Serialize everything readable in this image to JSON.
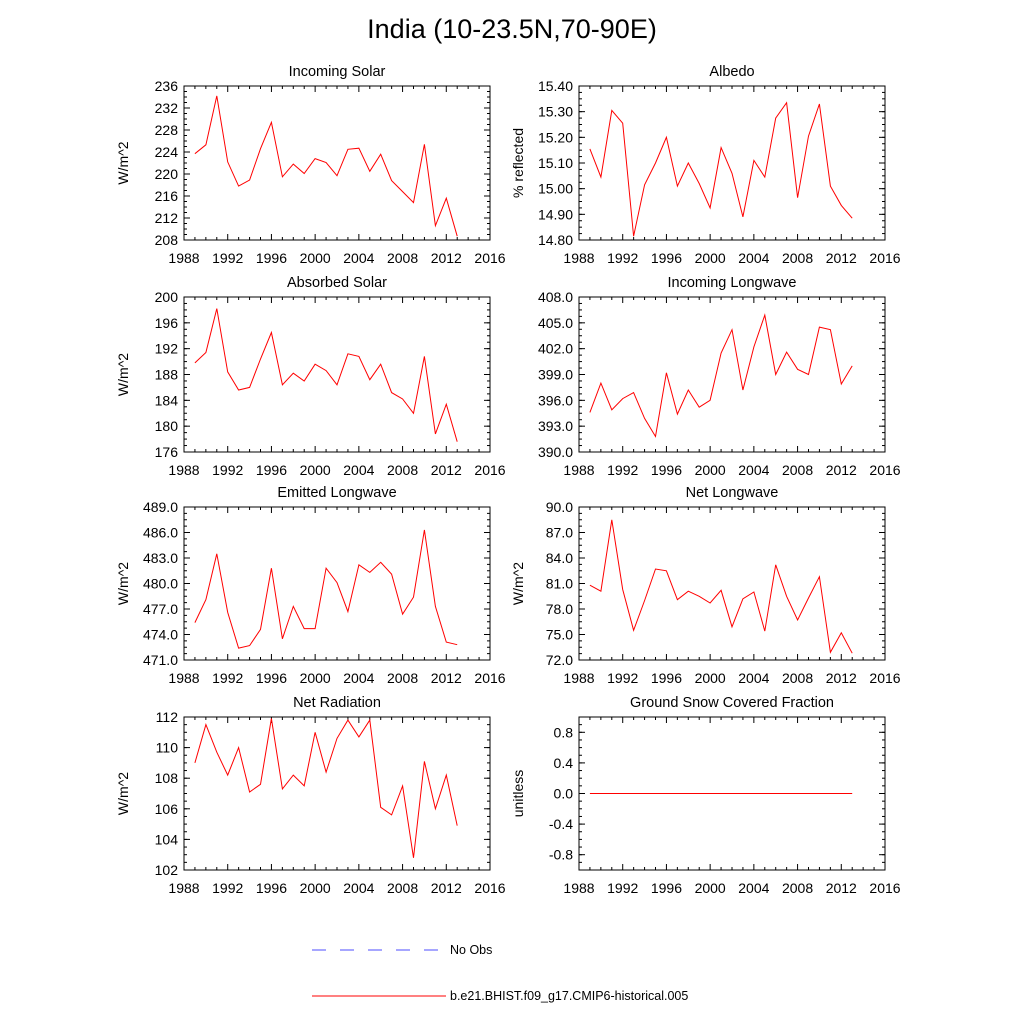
{
  "page_title": "India (10-23.5N,70-90E)",
  "colors": {
    "model_line": "#ff0000",
    "obs_line": "#4d4dff",
    "axis": "#000000"
  },
  "legend": {
    "obs_label": "No Obs",
    "model_label": "b.e21.BHIST.f09_g17.CMIP6-historical.005"
  },
  "chart_data": [
    {
      "id": "incoming-solar",
      "type": "line",
      "title": "Incoming Solar",
      "ylabel": "W/m^2",
      "xlim": [
        1988,
        2016
      ],
      "xticks": [
        1988,
        1992,
        1996,
        2000,
        2004,
        2008,
        2012,
        2016
      ],
      "ylim": [
        208,
        236
      ],
      "yticks": [
        208,
        212,
        216,
        220,
        224,
        228,
        232,
        236
      ],
      "ytick_decimals": 0,
      "x": [
        1989,
        1990,
        1991,
        1992,
        1993,
        1994,
        1995,
        1996,
        1997,
        1998,
        1999,
        2000,
        2001,
        2002,
        2003,
        2004,
        2005,
        2006,
        2007,
        2008,
        2009,
        2010,
        2011,
        2012,
        2013
      ],
      "series": [
        {
          "name": "b.e21.BHIST.f09_g17.CMIP6-historical.005",
          "values": [
            223.7,
            225.3,
            234.2,
            222.2,
            217.8,
            218.9,
            224.6,
            229.4,
            219.5,
            221.8,
            220.1,
            222.8,
            222.1,
            219.7,
            224.5,
            224.7,
            220.5,
            223.6,
            218.8,
            216.8,
            214.8,
            225.4,
            210.6,
            215.6,
            208.7
          ]
        }
      ]
    },
    {
      "id": "albedo",
      "type": "line",
      "title": "Albedo",
      "ylabel": "% reflected",
      "xlim": [
        1988,
        2016
      ],
      "xticks": [
        1988,
        1992,
        1996,
        2000,
        2004,
        2008,
        2012,
        2016
      ],
      "ylim": [
        14.8,
        15.4
      ],
      "yticks": [
        14.8,
        14.9,
        15.0,
        15.1,
        15.2,
        15.3,
        15.4
      ],
      "ytick_decimals": 2,
      "x": [
        1989,
        1990,
        1991,
        1992,
        1993,
        1994,
        1995,
        1996,
        1997,
        1998,
        1999,
        2000,
        2001,
        2002,
        2003,
        2004,
        2005,
        2006,
        2007,
        2008,
        2009,
        2010,
        2011,
        2012,
        2013
      ],
      "series": [
        {
          "name": "b.e21.BHIST.f09_g17.CMIP6-historical.005",
          "values": [
            15.155,
            15.045,
            15.305,
            15.255,
            14.815,
            15.015,
            15.1,
            15.2,
            15.01,
            15.1,
            15.02,
            14.925,
            15.16,
            15.06,
            14.89,
            15.11,
            15.045,
            15.275,
            15.335,
            14.965,
            15.205,
            15.33,
            15.01,
            14.935,
            14.885
          ]
        }
      ]
    },
    {
      "id": "absorbed-solar",
      "type": "line",
      "title": "Absorbed Solar",
      "ylabel": "W/m^2",
      "xlim": [
        1988,
        2016
      ],
      "xticks": [
        1988,
        1992,
        1996,
        2000,
        2004,
        2008,
        2012,
        2016
      ],
      "ylim": [
        176,
        200
      ],
      "yticks": [
        176,
        180,
        184,
        188,
        192,
        196,
        200
      ],
      "ytick_decimals": 0,
      "x": [
        1989,
        1990,
        1991,
        1992,
        1993,
        1994,
        1995,
        1996,
        1997,
        1998,
        1999,
        2000,
        2001,
        2002,
        2003,
        2004,
        2005,
        2006,
        2007,
        2008,
        2009,
        2010,
        2011,
        2012,
        2013
      ],
      "series": [
        {
          "name": "b.e21.BHIST.f09_g17.CMIP6-historical.005",
          "values": [
            189.8,
            191.4,
            198.2,
            188.4,
            185.6,
            186.0,
            190.4,
            194.5,
            186.4,
            188.2,
            187.0,
            189.6,
            188.6,
            186.4,
            191.2,
            190.8,
            187.2,
            189.6,
            185.2,
            184.2,
            182.0,
            190.8,
            178.8,
            183.4,
            177.6
          ]
        }
      ]
    },
    {
      "id": "incoming-longwave",
      "type": "line",
      "title": "Incoming Longwave",
      "ylabel": "",
      "xlim": [
        1988,
        2016
      ],
      "xticks": [
        1988,
        1992,
        1996,
        2000,
        2004,
        2008,
        2012,
        2016
      ],
      "ylim": [
        390,
        408
      ],
      "yticks": [
        390,
        393,
        396,
        399,
        402,
        405,
        408
      ],
      "ytick_decimals": 1,
      "x": [
        1989,
        1990,
        1991,
        1992,
        1993,
        1994,
        1995,
        1996,
        1997,
        1998,
        1999,
        2000,
        2001,
        2002,
        2003,
        2004,
        2005,
        2006,
        2007,
        2008,
        2009,
        2010,
        2011,
        2012,
        2013
      ],
      "series": [
        {
          "name": "b.e21.BHIST.f09_g17.CMIP6-historical.005",
          "values": [
            394.6,
            398.0,
            394.9,
            396.2,
            396.9,
            393.9,
            391.8,
            399.2,
            394.4,
            397.2,
            395.2,
            396.0,
            401.5,
            404.2,
            397.2,
            402.2,
            405.9,
            399.0,
            401.6,
            399.6,
            399.0,
            404.5,
            404.2,
            397.9,
            400.0
          ]
        }
      ]
    },
    {
      "id": "emitted-longwave",
      "type": "line",
      "title": "Emitted Longwave",
      "ylabel": "W/m^2",
      "xlim": [
        1988,
        2016
      ],
      "xticks": [
        1988,
        1992,
        1996,
        2000,
        2004,
        2008,
        2012,
        2016
      ],
      "ylim": [
        471,
        489
      ],
      "yticks": [
        471,
        474,
        477,
        480,
        483,
        486,
        489
      ],
      "ytick_decimals": 1,
      "x": [
        1989,
        1990,
        1991,
        1992,
        1993,
        1994,
        1995,
        1996,
        1997,
        1998,
        1999,
        2000,
        2001,
        2002,
        2003,
        2004,
        2005,
        2006,
        2007,
        2008,
        2009,
        2010,
        2011,
        2012,
        2013
      ],
      "series": [
        {
          "name": "b.e21.BHIST.f09_g17.CMIP6-historical.005",
          "values": [
            475.4,
            478.1,
            483.5,
            476.6,
            472.4,
            472.7,
            474.6,
            481.8,
            473.5,
            477.3,
            474.7,
            474.7,
            481.8,
            480.1,
            476.7,
            482.2,
            481.3,
            482.5,
            481.1,
            476.4,
            478.4,
            486.3,
            477.3,
            473.1,
            472.8
          ]
        }
      ]
    },
    {
      "id": "net-longwave",
      "type": "line",
      "title": "Net Longwave",
      "ylabel": "W/m^2",
      "xlim": [
        1988,
        2016
      ],
      "xticks": [
        1988,
        1992,
        1996,
        2000,
        2004,
        2008,
        2012,
        2016
      ],
      "ylim": [
        72,
        90
      ],
      "yticks": [
        72,
        75,
        78,
        81,
        84,
        87,
        90
      ],
      "ytick_decimals": 1,
      "x": [
        1989,
        1990,
        1991,
        1992,
        1993,
        1994,
        1995,
        1996,
        1997,
        1998,
        1999,
        2000,
        2001,
        2002,
        2003,
        2004,
        2005,
        2006,
        2007,
        2008,
        2009,
        2010,
        2011,
        2012,
        2013
      ],
      "series": [
        {
          "name": "b.e21.BHIST.f09_g17.CMIP6-historical.005",
          "values": [
            80.8,
            80.1,
            88.5,
            80.3,
            75.5,
            79.0,
            82.7,
            82.5,
            79.1,
            80.1,
            79.5,
            78.7,
            80.2,
            75.9,
            79.2,
            80.0,
            75.4,
            83.2,
            79.5,
            76.7,
            79.3,
            81.8,
            72.9,
            75.2,
            72.8
          ]
        }
      ]
    },
    {
      "id": "net-radiation",
      "type": "line",
      "title": "Net Radiation",
      "ylabel": "W/m^2",
      "xlim": [
        1988,
        2016
      ],
      "xticks": [
        1988,
        1992,
        1996,
        2000,
        2004,
        2008,
        2012,
        2016
      ],
      "ylim": [
        102,
        112
      ],
      "yticks": [
        102,
        104,
        106,
        108,
        110,
        112
      ],
      "ytick_decimals": 0,
      "x": [
        1989,
        1990,
        1991,
        1992,
        1993,
        1994,
        1995,
        1996,
        1997,
        1998,
        1999,
        2000,
        2001,
        2002,
        2003,
        2004,
        2005,
        2006,
        2007,
        2008,
        2009,
        2010,
        2011,
        2012,
        2013
      ],
      "series": [
        {
          "name": "b.e21.BHIST.f09_g17.CMIP6-historical.005",
          "values": [
            109.0,
            111.5,
            109.7,
            108.2,
            110.0,
            107.1,
            107.6,
            111.9,
            107.3,
            108.2,
            107.5,
            111.0,
            108.4,
            110.6,
            111.8,
            110.7,
            111.8,
            106.1,
            105.6,
            107.5,
            102.8,
            109.1,
            106.0,
            108.2,
            104.9
          ]
        }
      ]
    },
    {
      "id": "ground-snow-covered-fraction",
      "type": "line",
      "title": "Ground Snow Covered Fraction",
      "ylabel": "unitless",
      "xlim": [
        1988,
        2016
      ],
      "xticks": [
        1988,
        1992,
        1996,
        2000,
        2004,
        2008,
        2012,
        2016
      ],
      "ylim": [
        -1.0,
        1.0
      ],
      "yticks": [
        -0.8,
        -0.4,
        0.0,
        0.4,
        0.8
      ],
      "ytick_decimals": 1,
      "x": [
        1989,
        1990,
        1991,
        1992,
        1993,
        1994,
        1995,
        1996,
        1997,
        1998,
        1999,
        2000,
        2001,
        2002,
        2003,
        2004,
        2005,
        2006,
        2007,
        2008,
        2009,
        2010,
        2011,
        2012,
        2013
      ],
      "series": [
        {
          "name": "b.e21.BHIST.f09_g17.CMIP6-historical.005",
          "values": [
            0,
            0,
            0,
            0,
            0,
            0,
            0,
            0,
            0,
            0,
            0,
            0,
            0,
            0,
            0,
            0,
            0,
            0,
            0,
            0,
            0,
            0,
            0,
            0,
            0
          ]
        }
      ]
    }
  ]
}
